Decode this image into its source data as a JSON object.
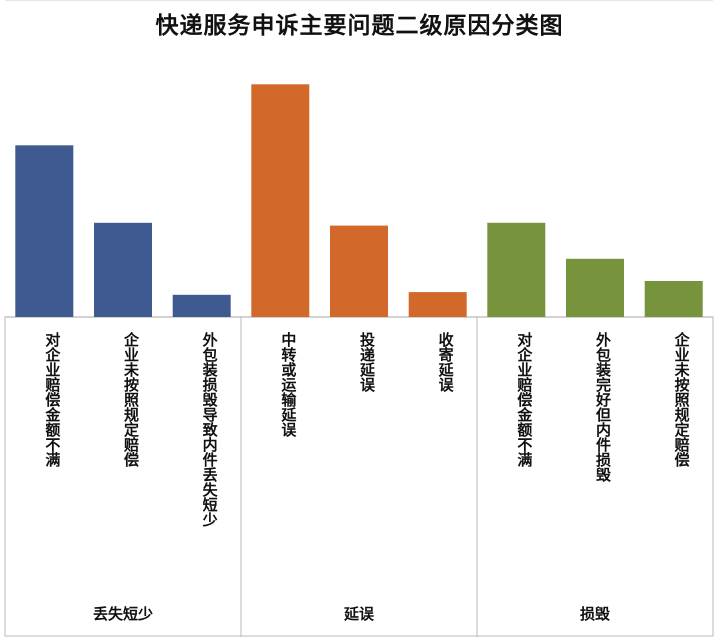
{
  "chart_data": {
    "type": "bar",
    "title": "快递服务申诉主要问题二级原因分类图",
    "groups": [
      {
        "name": "丢失短少",
        "color": "#3E5A91",
        "categories": [
          "对企业赔偿金额不满",
          "企业未按照规定赔偿",
          "外包装损毁导致内件丢失短少"
        ],
        "values": [
          62,
          34,
          8
        ]
      },
      {
        "name": "延误",
        "color": "#D2692A",
        "categories": [
          "中转或运输延误",
          "投递延误",
          "收寄延误"
        ],
        "values": [
          84,
          33,
          9
        ]
      },
      {
        "name": "损毁",
        "color": "#77933C",
        "categories": [
          "对企业赔偿金额不满",
          "外包装完好但内件损毁",
          "企业未按照规定赔偿"
        ],
        "values": [
          34,
          21,
          13
        ]
      }
    ],
    "ylim": [
      0,
      100
    ],
    "grid": false,
    "legend": "none"
  }
}
